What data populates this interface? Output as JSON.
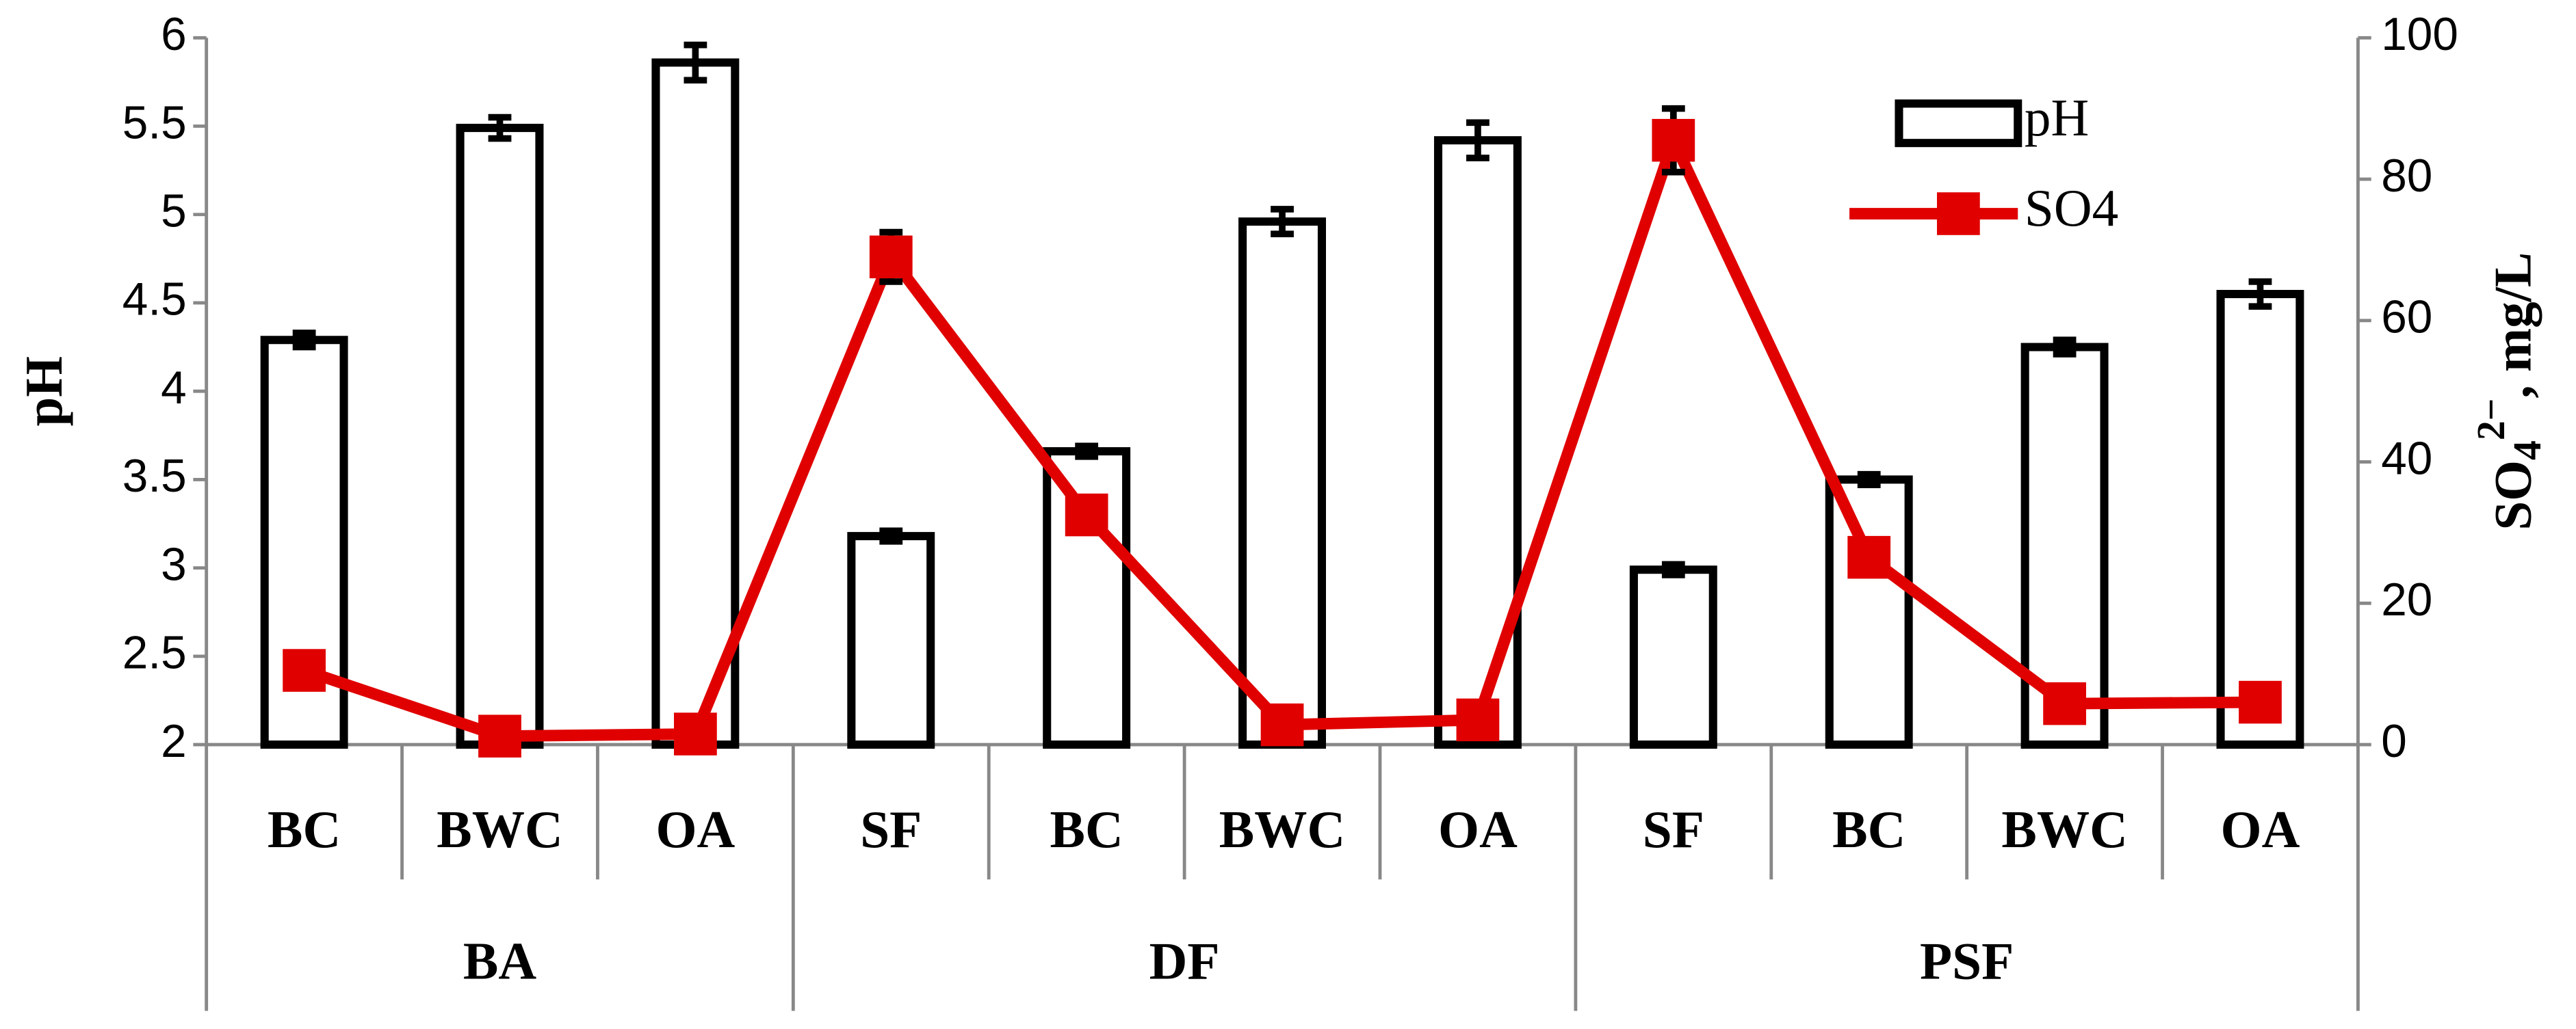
{
  "chart_data": {
    "type": "bar-line",
    "groups": [
      {
        "name": "BA",
        "categories": [
          "BC",
          "BWC",
          "OA"
        ]
      },
      {
        "name": "DF",
        "categories": [
          "SF",
          "BC",
          "BWC",
          "OA"
        ]
      },
      {
        "name": "PSF",
        "categories": [
          "SF",
          "BC",
          "BWC",
          "OA"
        ]
      }
    ],
    "series": [
      {
        "name": "pH",
        "type": "bar",
        "color": "#000000",
        "fill": "#ffffff",
        "values": [
          4.29,
          5.49,
          5.86,
          3.18,
          3.66,
          4.96,
          5.42,
          2.99,
          3.5,
          4.25,
          4.55
        ],
        "errors": [
          0.04,
          0.06,
          0.1,
          0.03,
          0.03,
          0.07,
          0.1,
          0.03,
          0.03,
          0.04,
          0.07
        ]
      },
      {
        "name": "SO4",
        "type": "line",
        "axis": "y2",
        "color": "#e00000",
        "values": [
          10.5,
          1.2,
          1.5,
          69,
          32.5,
          2.8,
          3.5,
          85.5,
          26.5,
          5.8,
          6
        ],
        "errors": [
          0.5,
          0.3,
          0.3,
          3.5,
          1,
          0.3,
          0.3,
          4.5,
          1,
          0.3,
          0.3
        ]
      }
    ],
    "ylabel": "pH",
    "y2label": {
      "base": "SO",
      "sub": "4",
      "sup": "2−",
      "rest": ", mg/L"
    },
    "ylim": [
      2,
      6
    ],
    "yticks": [
      2,
      2.5,
      3,
      3.5,
      4,
      4.5,
      5,
      5.5,
      6
    ],
    "y2lim": [
      0,
      100
    ],
    "y2ticks": [
      0,
      20,
      40,
      60,
      80,
      100
    ],
    "legend": "upper right"
  }
}
